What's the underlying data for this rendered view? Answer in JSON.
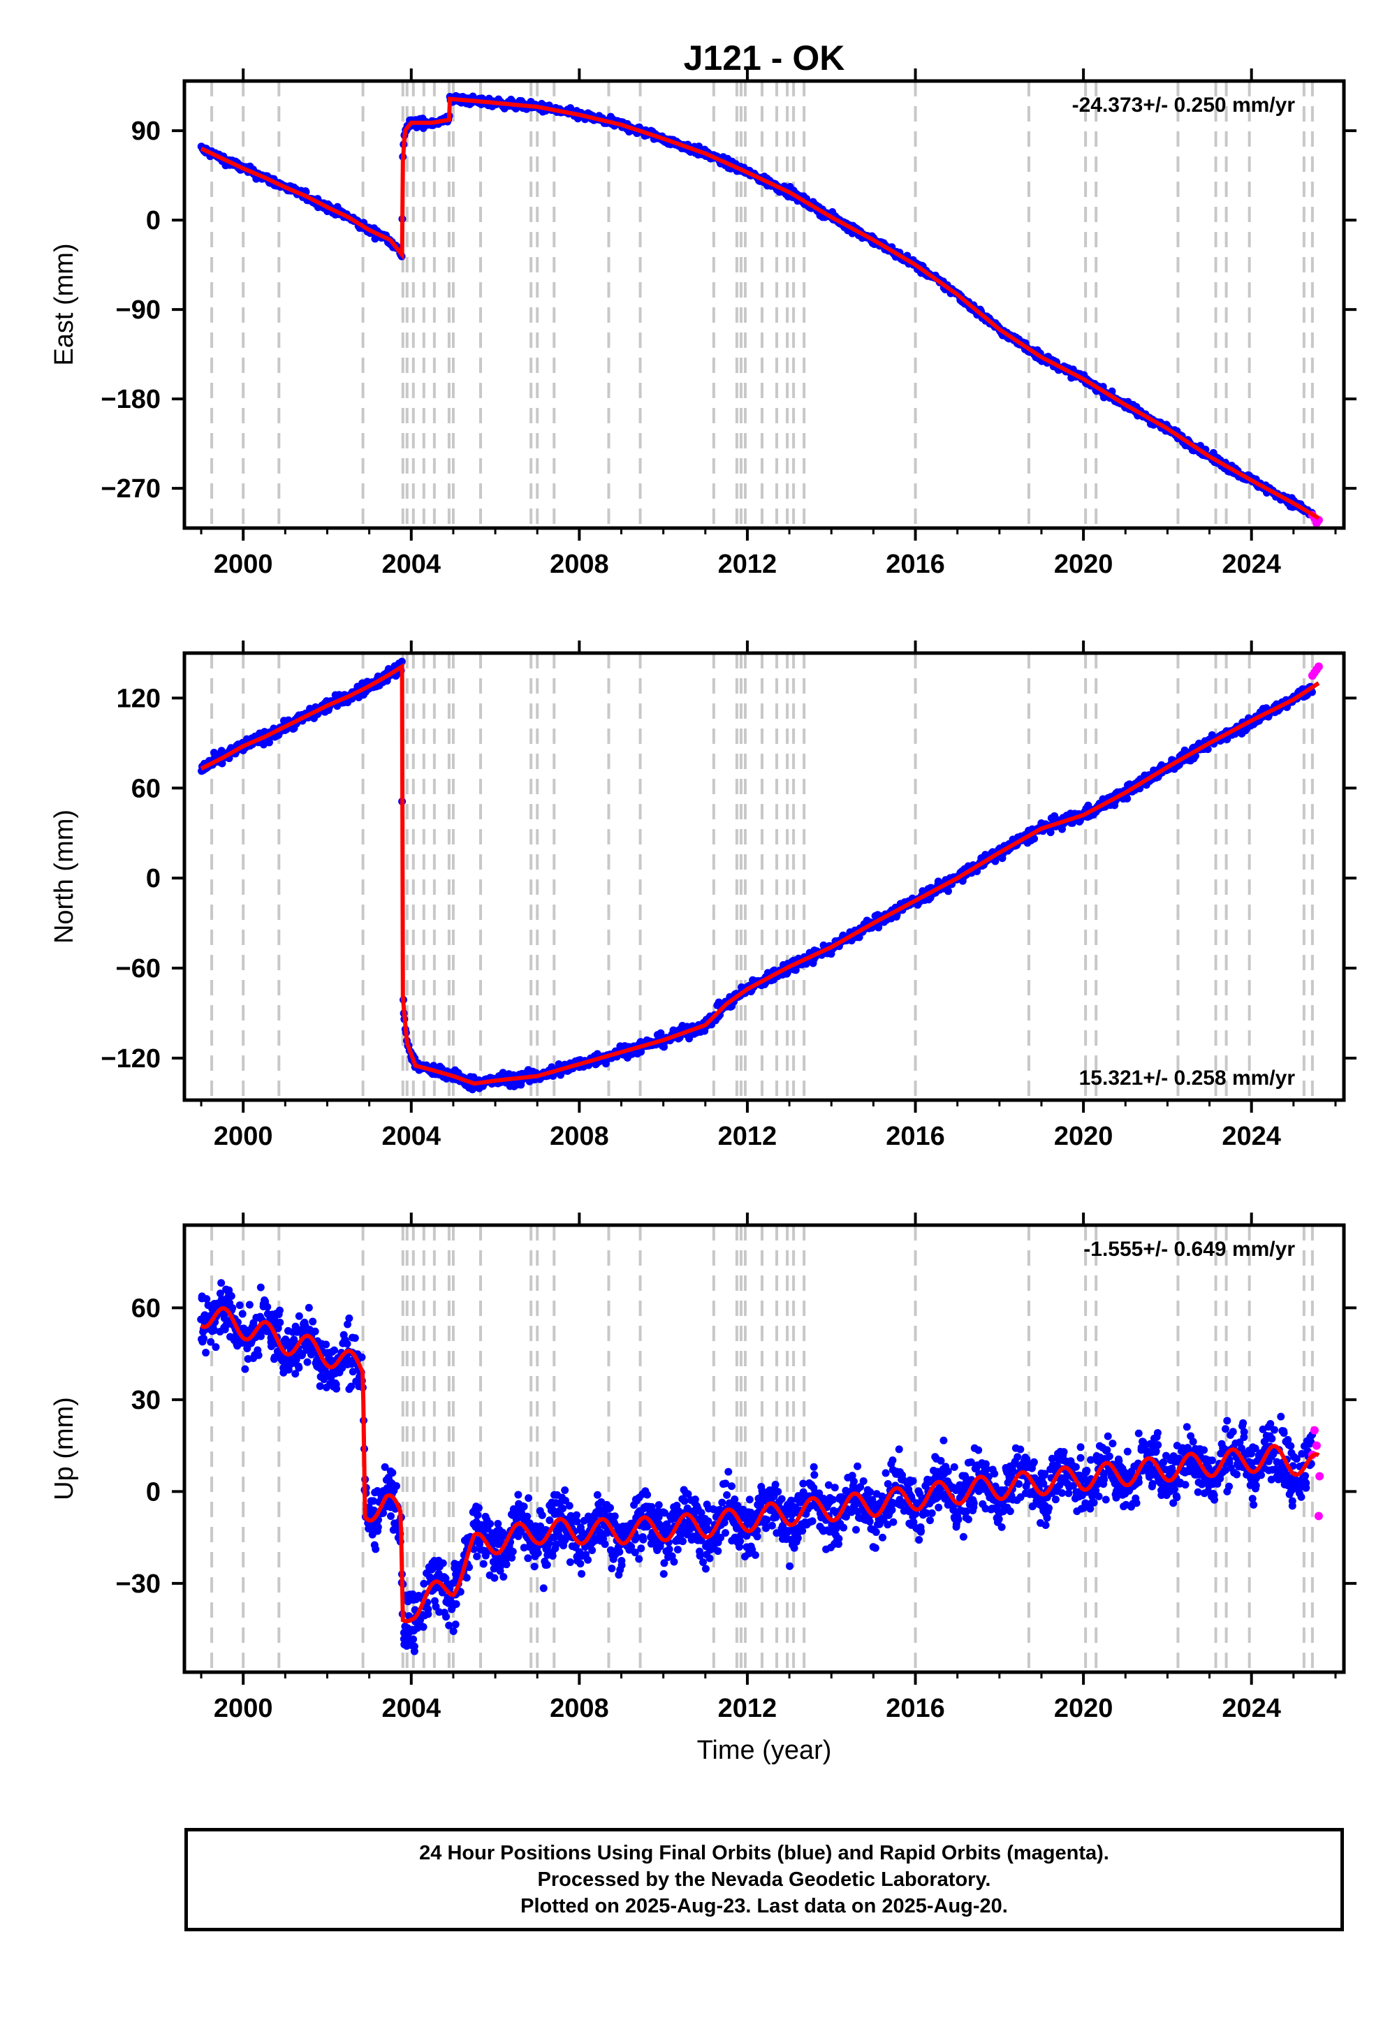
{
  "title": "J121 - OK",
  "xlabel": "Time (year)",
  "colors": {
    "final": "#0000ff",
    "rapid": "#ff00ff",
    "model": "#ff0000",
    "events": "#c8c8c8"
  },
  "footer": {
    "line1": "24 Hour Positions Using Final Orbits (blue) and Rapid Orbits (magenta).",
    "line2": "Processed by the Nevada Geodetic Laboratory.",
    "line3": "Plotted on 2025-Aug-23. Last data on 2025-Aug-20."
  },
  "chart_data": [
    {
      "type": "scatter",
      "ylabel": "East (mm)",
      "rate": "-24.373+/- 0.250 mm/yr",
      "rate_position": "top-right",
      "xlim": [
        1998.6,
        2026.2
      ],
      "ylim": [
        -310,
        140
      ],
      "xticks": [
        2000,
        2004,
        2008,
        2012,
        2016,
        2020,
        2024
      ],
      "yticks": [
        90,
        0,
        -90,
        -180,
        -270
      ],
      "ytick_labels": [
        "90",
        "0",
        "−90",
        "−180",
        "−270"
      ],
      "model_points": [
        [
          1999.0,
          72
        ],
        [
          1999.5,
          62
        ],
        [
          2000.0,
          52
        ],
        [
          2000.5,
          43
        ],
        [
          2001.0,
          33
        ],
        [
          2001.5,
          24
        ],
        [
          2002.0,
          13
        ],
        [
          2002.5,
          3
        ],
        [
          2003.0,
          -10
        ],
        [
          2003.5,
          -20
        ],
        [
          2003.78,
          -35
        ],
        [
          2003.8,
          60
        ],
        [
          2003.85,
          90
        ],
        [
          2004.0,
          98
        ],
        [
          2004.5,
          98
        ],
        [
          2004.9,
          101
        ],
        [
          2004.92,
          122
        ],
        [
          2005.5,
          120
        ],
        [
          2006.0,
          118
        ],
        [
          2007.0,
          114
        ],
        [
          2008.0,
          106
        ],
        [
          2009.0,
          96
        ],
        [
          2010.0,
          82
        ],
        [
          2011.0,
          67
        ],
        [
          2012.0,
          48
        ],
        [
          2013.0,
          28
        ],
        [
          2014.0,
          3
        ],
        [
          2015.0,
          -20
        ],
        [
          2016.0,
          -45
        ],
        [
          2017.0,
          -75
        ],
        [
          2018.0,
          -110
        ],
        [
          2019.0,
          -138
        ],
        [
          2020.0,
          -160
        ],
        [
          2021.0,
          -186
        ],
        [
          2022.0,
          -210
        ],
        [
          2023.0,
          -238
        ],
        [
          2024.0,
          -262
        ],
        [
          2025.0,
          -285
        ],
        [
          2025.6,
          -300
        ]
      ],
      "noise": 3,
      "rapid_points": [
        [
          2025.45,
          -297
        ],
        [
          2025.5,
          -300
        ],
        [
          2025.55,
          -305
        ],
        [
          2025.6,
          -302
        ]
      ]
    },
    {
      "type": "scatter",
      "ylabel": "North (mm)",
      "rate": "15.321+/- 0.258 mm/yr",
      "rate_position": "bottom-right",
      "xlim": [
        1998.6,
        2026.2
      ],
      "ylim": [
        -148,
        150
      ],
      "xticks": [
        2000,
        2004,
        2008,
        2012,
        2016,
        2020,
        2024
      ],
      "yticks": [
        120,
        60,
        0,
        -60,
        -120
      ],
      "ytick_labels": [
        "120",
        "60",
        "0",
        "−60",
        "−120"
      ],
      "model_points": [
        [
          1999.0,
          73
        ],
        [
          1999.5,
          80
        ],
        [
          2000.0,
          88
        ],
        [
          2000.5,
          94
        ],
        [
          2001.0,
          101
        ],
        [
          2001.5,
          108
        ],
        [
          2002.0,
          115
        ],
        [
          2002.5,
          121
        ],
        [
          2003.0,
          128
        ],
        [
          2003.5,
          136
        ],
        [
          2003.78,
          141
        ],
        [
          2003.8,
          -80
        ],
        [
          2003.9,
          -110
        ],
        [
          2004.1,
          -125
        ],
        [
          2004.5,
          -128
        ],
        [
          2005.0,
          -132
        ],
        [
          2005.5,
          -137
        ],
        [
          2006.0,
          -135
        ],
        [
          2007.0,
          -132
        ],
        [
          2008.0,
          -124
        ],
        [
          2009.0,
          -116
        ],
        [
          2010.0,
          -108
        ],
        [
          2011.0,
          -98
        ],
        [
          2011.5,
          -84
        ],
        [
          2012.0,
          -74
        ],
        [
          2013.0,
          -59
        ],
        [
          2014.0,
          -46
        ],
        [
          2015.0,
          -30
        ],
        [
          2016.0,
          -15
        ],
        [
          2017.0,
          0
        ],
        [
          2018.0,
          17
        ],
        [
          2019.0,
          33
        ],
        [
          2020.0,
          42
        ],
        [
          2021.0,
          57
        ],
        [
          2022.0,
          74
        ],
        [
          2023.0,
          90
        ],
        [
          2024.0,
          105
        ],
        [
          2025.0,
          119
        ],
        [
          2025.6,
          130
        ]
      ],
      "noise": 3,
      "rapid_points": [
        [
          2025.45,
          135
        ],
        [
          2025.5,
          137
        ],
        [
          2025.55,
          139
        ],
        [
          2025.6,
          141
        ]
      ]
    },
    {
      "type": "scatter",
      "ylabel": "Up (mm)",
      "rate": "-1.555+/- 0.649 mm/yr",
      "rate_position": "top-right",
      "xlim": [
        1998.6,
        2026.2
      ],
      "ylim": [
        -59,
        87
      ],
      "xticks": [
        2000,
        2004,
        2008,
        2012,
        2016,
        2020,
        2024
      ],
      "yticks": [
        60,
        30,
        0,
        -30
      ],
      "ytick_labels": [
        "60",
        "30",
        "0",
        "−30"
      ],
      "model_points": [
        [
          1999.0,
          58
        ],
        [
          2000.0,
          54
        ],
        [
          2001.0,
          49
        ],
        [
          2002.0,
          45
        ],
        [
          2002.85,
          40
        ],
        [
          2002.9,
          -6
        ],
        [
          2003.4,
          -4
        ],
        [
          2003.75,
          -8
        ],
        [
          2003.8,
          -42
        ],
        [
          2004.0,
          -38
        ],
        [
          2005.0,
          -30
        ],
        [
          2005.5,
          -18
        ],
        [
          2007.0,
          -13
        ],
        [
          2009.0,
          -13
        ],
        [
          2011.0,
          -11
        ],
        [
          2013.0,
          -7
        ],
        [
          2015.0,
          -4
        ],
        [
          2017.0,
          0
        ],
        [
          2019.0,
          3
        ],
        [
          2021.0,
          6
        ],
        [
          2023.0,
          9
        ],
        [
          2024.5,
          11
        ],
        [
          2025.6,
          8
        ]
      ],
      "seasonal_amplitude": 4,
      "noise": 7,
      "rapid_points": [
        [
          2025.45,
          12
        ],
        [
          2025.5,
          20
        ],
        [
          2025.55,
          15
        ],
        [
          2025.6,
          -8
        ],
        [
          2025.62,
          5
        ]
      ]
    }
  ],
  "event_lines": [
    1999.25,
    2000.0,
    2000.85,
    2002.85,
    2003.8,
    2003.9,
    2004.05,
    2004.3,
    2004.55,
    2004.9,
    2005.0,
    2005.65,
    2006.85,
    2007.0,
    2007.4,
    2008.7,
    2009.45,
    2011.2,
    2011.75,
    2011.85,
    2011.95,
    2012.35,
    2012.7,
    2012.95,
    2013.1,
    2013.35,
    2016.0,
    2018.7,
    2020.05,
    2020.3,
    2022.25,
    2023.15,
    2023.4,
    2023.95,
    2025.25,
    2025.45
  ]
}
